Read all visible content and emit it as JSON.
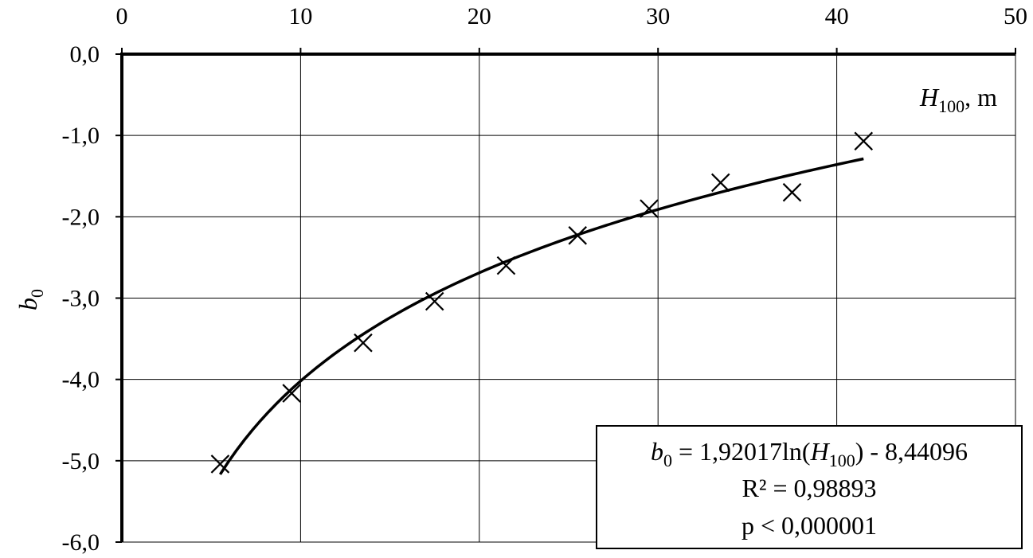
{
  "chart_data": {
    "type": "scatter",
    "x_axis": {
      "label_main": "H",
      "label_sub": "100",
      "label_suffix": ", m",
      "min": 0,
      "max": 50,
      "ticks": [
        "0",
        "10",
        "20",
        "30",
        "40",
        "50"
      ],
      "tick_values": [
        0,
        10,
        20,
        30,
        40,
        50
      ],
      "position": "top"
    },
    "y_axis": {
      "label_main": "b",
      "label_sub": "0",
      "min": -6,
      "max": 0,
      "ticks": [
        "0,0",
        "-1,0",
        "-2,0",
        "-3,0",
        "-4,0",
        "-5,0",
        "-6,0"
      ],
      "tick_values": [
        0,
        -1,
        -2,
        -3,
        -4,
        -5,
        -6
      ]
    },
    "grid": true,
    "series": [
      {
        "marker": "x",
        "color": "#000000",
        "x": [
          5.5,
          9.5,
          13.5,
          17.5,
          21.5,
          25.5,
          29.5,
          33.5,
          37.5,
          41.5
        ],
        "y": [
          -5.04,
          -4.17,
          -3.55,
          -3.04,
          -2.6,
          -2.23,
          -1.9,
          -1.58,
          -1.7,
          -1.07
        ]
      }
    ],
    "trendline": {
      "type": "logarithmic",
      "a": 1.92017,
      "b": -8.44096,
      "x_range": [
        5.5,
        41.5
      ],
      "color": "#000000"
    },
    "annotation": {
      "line1_var": "b",
      "line1_var_sub": "0",
      "line1_mid": " = 1,92017ln(",
      "line1_arg": "H",
      "line1_arg_sub": "100",
      "line1_end": ")  - 8,44096",
      "line2": "R² = 0,98893",
      "line3": "p < 0,000001",
      "placement": "bottom-right"
    }
  }
}
